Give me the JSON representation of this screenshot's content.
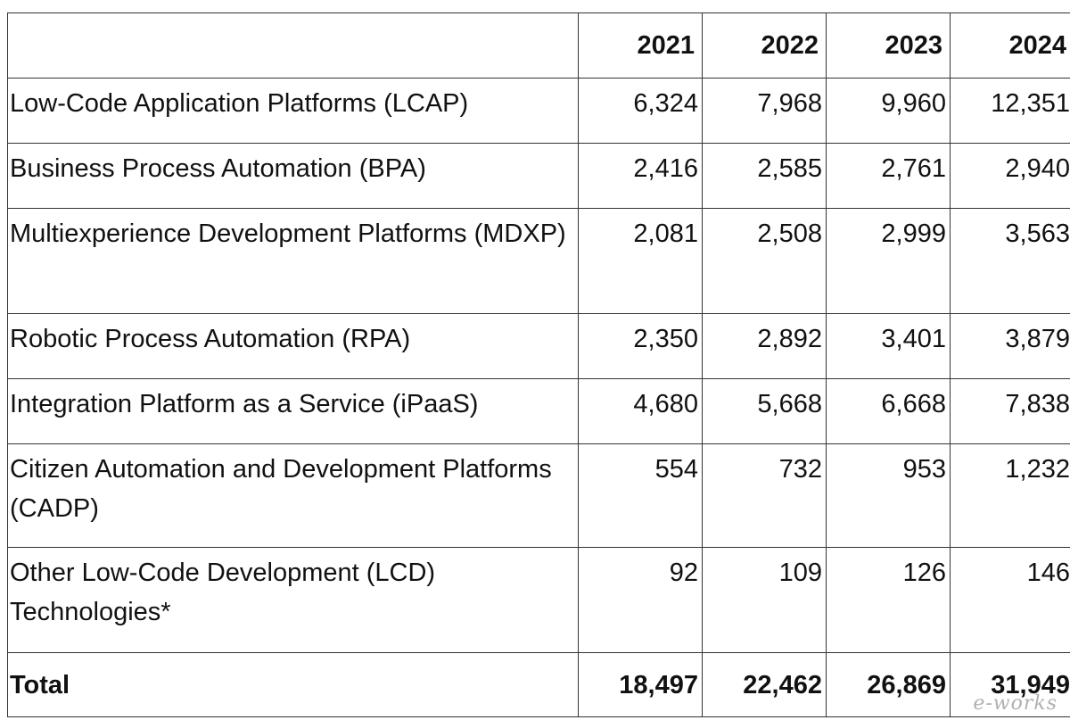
{
  "chart_data": {
    "type": "table",
    "columns": [
      "",
      "2021",
      "2022",
      "2023",
      "2024"
    ],
    "rows": [
      {
        "label": "Low-Code Application Platforms (LCAP)",
        "values": [
          "6,324",
          "7,968",
          "9,960",
          "12,351"
        ]
      },
      {
        "label": "Business Process Automation (BPA)",
        "values": [
          "2,416",
          "2,585",
          "2,761",
          "2,940"
        ]
      },
      {
        "label": "Multiexperience Development Platforms (MDXP)",
        "values": [
          "2,081",
          "2,508",
          "2,999",
          "3,563"
        ]
      },
      {
        "label": "Robotic Process Automation (RPA)",
        "values": [
          "2,350",
          "2,892",
          "3,401",
          "3,879"
        ]
      },
      {
        "label": "Integration Platform as a Service (iPaaS)",
        "values": [
          "4,680",
          "5,668",
          "6,668",
          "7,838"
        ]
      },
      {
        "label": "Citizen Automation and Development Platforms (CADP)",
        "values": [
          "554",
          "732",
          "953",
          "1,232"
        ]
      },
      {
        "label": "Other Low-Code Development (LCD) Technologies*",
        "values": [
          "92",
          "109",
          "126",
          "146"
        ]
      }
    ],
    "total": {
      "label": "Total",
      "values": [
        "18,497",
        "22,462",
        "26,869",
        "31,949"
      ]
    }
  },
  "watermark": "e-works"
}
